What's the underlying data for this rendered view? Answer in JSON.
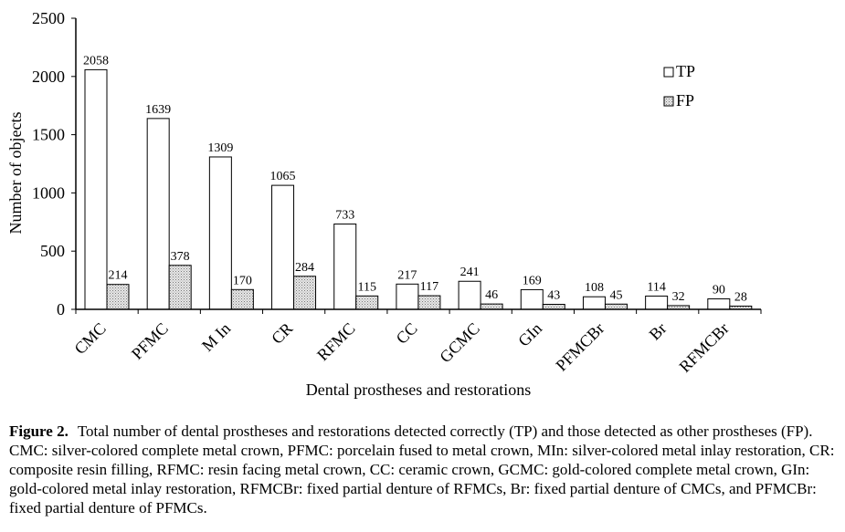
{
  "chart_data": {
    "type": "bar",
    "categories": [
      "CMC",
      "PFMC",
      "M In",
      "CR",
      "RFMC",
      "CC",
      "GCMC",
      "GIn",
      "PFMCBr",
      "Br",
      "RFMCBr"
    ],
    "series": [
      {
        "name": "TP",
        "values": [
          2058,
          1639,
          1309,
          1065,
          733,
          217,
          241,
          169,
          108,
          114,
          90
        ]
      },
      {
        "name": "FP",
        "values": [
          214,
          378,
          170,
          284,
          115,
          117,
          46,
          43,
          45,
          32,
          28
        ]
      }
    ],
    "xlabel": "Dental prostheses and restorations",
    "ylabel": "Number of objects",
    "ylim": [
      0,
      2500
    ],
    "yticks": [
      0,
      500,
      1000,
      1500,
      2000,
      2500
    ],
    "grid": false,
    "legend_position": "top-right"
  },
  "caption": {
    "label": "Figure 2.",
    "text": "Total number of dental prostheses and restorations detected correctly (TP) and those detected as other prostheses (FP). CMC: silver-colored complete metal crown, PFMC: porcelain fused to metal crown, MIn: silver-colored metal inlay restoration, CR: composite resin filling, RFMC: resin facing metal crown, CC: ceramic crown, GCMC: gold-colored complete metal crown, GIn: gold-colored metal inlay restoration, RFMCBr: fixed partial denture of RFMCs, Br: fixed partial denture of CMCs, and PFMCBr: fixed partial denture of PFMCs."
  },
  "colors": {
    "tp_fill": "#ffffff",
    "fp_fill": "#d9d9d9",
    "bar_stroke": "#000000",
    "axis": "#000000"
  }
}
